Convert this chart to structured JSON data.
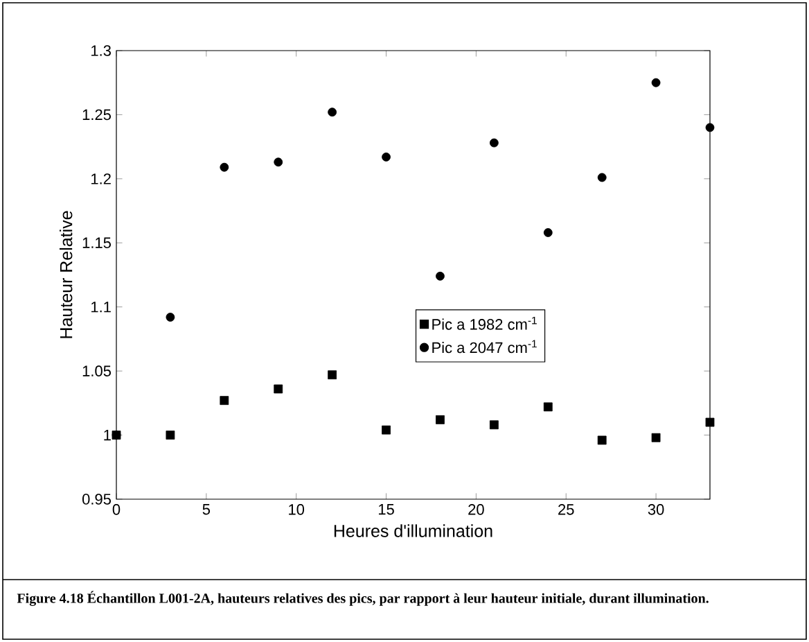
{
  "chart_data": {
    "type": "scatter",
    "xlabel": "Heures d'illumination",
    "ylabel": "Hauteur Relative",
    "x": [
      0,
      3,
      6,
      9,
      12,
      15,
      18,
      21,
      24,
      27,
      30,
      33
    ],
    "series": [
      {
        "name": "Pic a 1982 cm$^{-1}$",
        "color": "#000000",
        "marker": "square",
        "values": [
          1.0,
          1.0,
          1.027,
          1.036,
          1.047,
          1.004,
          1.012,
          1.008,
          1.022,
          0.996,
          0.998,
          1.01
        ]
      },
      {
        "name": "Pic a 2047 cm$^{-1}$",
        "color": "#000000",
        "marker": "circle",
        "values": [
          1.0,
          1.092,
          1.209,
          1.213,
          1.252,
          1.217,
          1.124,
          1.228,
          1.158,
          1.201,
          1.275,
          1.24
        ]
      }
    ],
    "xlim": [
      0,
      33
    ],
    "ylim": [
      0.95,
      1.3
    ],
    "xticks": [
      0,
      5,
      10,
      15,
      20,
      25,
      30
    ],
    "yticks": [
      0.95,
      1,
      1.05,
      1.1,
      1.15,
      1.2,
      1.25,
      1.3
    ],
    "legend": "right",
    "grid": false,
    "annotations": [
      "**Figure 4.18 Échantillon L001-2A, hauteurs relatives des pics, par rapport à leur hauteur initiale, durant illumination.**"
    ]
  }
}
